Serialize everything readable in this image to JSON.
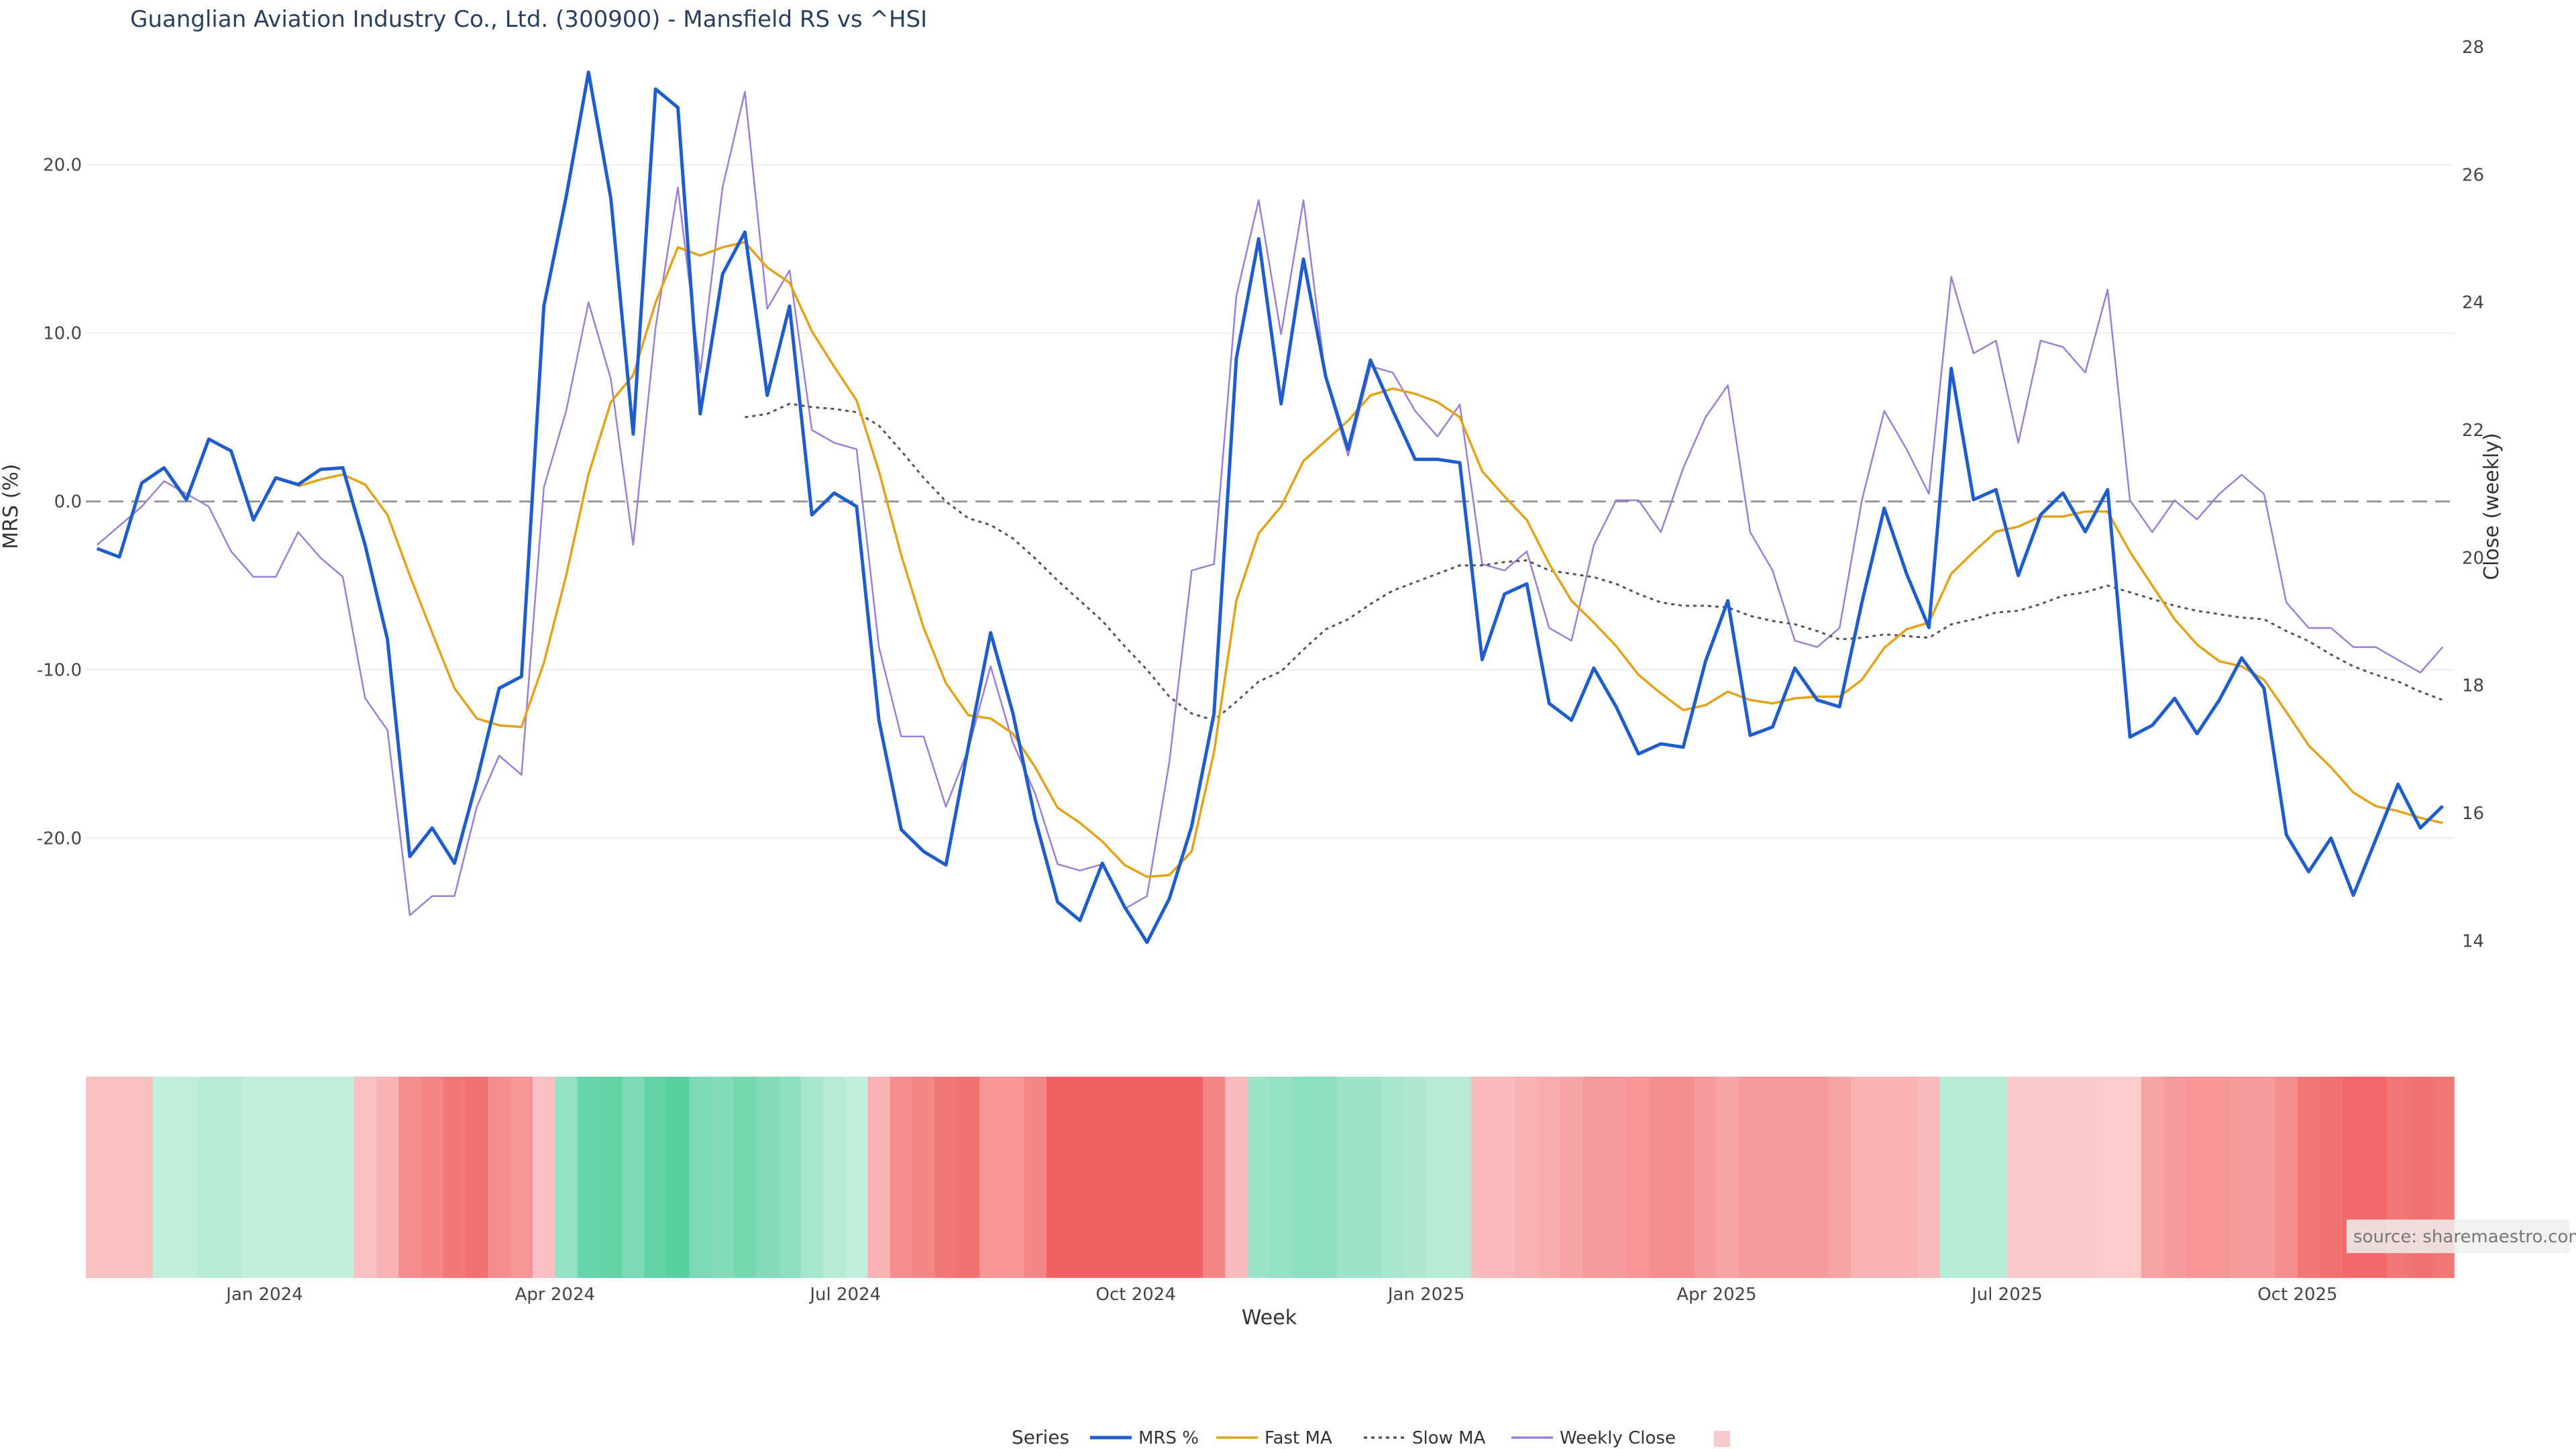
{
  "chart_data": {
    "type": "line",
    "title": "Guanglian Aviation Industry Co., Ltd. (300900) - Mansfield RS vs ^HSI",
    "xlabel": "Week",
    "ylabel_left": "MRS (%)",
    "ylabel_right": "Close (weekly)",
    "left_ticks": [
      "20.0",
      "10.0",
      "0.0",
      "-10.0",
      "-20.0"
    ],
    "right_ticks": [
      "28",
      "26",
      "24",
      "22",
      "20",
      "18",
      "16",
      "14"
    ],
    "x_ticks": [
      "Jan 2024",
      "Apr 2024",
      "Jul 2024",
      "Oct 2024",
      "Jan 2025",
      "Apr 2025",
      "Jul 2025",
      "Oct 2025"
    ],
    "ylim_left": [
      -28,
      27
    ],
    "ylim_right": [
      13.5,
      28
    ],
    "legend_title": "Series",
    "source": "source: sharemaestro.com",
    "colors": {
      "mrs": "#1f5ccc",
      "fast": "#e3a21a",
      "slow": "#555555",
      "close": "#9b7fd4",
      "zero": "#888888",
      "green": "#2ec48a",
      "red": "#ee4b4b"
    },
    "series": [
      {
        "name": "MRS %",
        "values": [
          -2.8,
          -3.3,
          1.1,
          2.0,
          0.1,
          3.7,
          3.0,
          -1.1,
          1.4,
          1.0,
          1.9,
          2.0,
          -2.6,
          -8.2,
          -21.1,
          -19.4,
          -21.5,
          -16.6,
          -11.1,
          -10.4,
          11.6,
          18.1,
          25.5,
          18.0,
          4.0,
          24.5,
          23.4,
          5.2,
          13.5,
          16.0,
          6.3,
          11.6,
          -0.8,
          0.5,
          -0.3,
          -13.0,
          -19.5,
          -20.8,
          -21.6,
          -14.6,
          -7.8,
          -12.6,
          -18.9,
          -23.8,
          -24.9,
          -21.5,
          -24.1,
          -26.2,
          -23.6,
          -19.3,
          -12.6,
          8.5,
          15.6,
          5.8,
          14.4,
          7.4,
          3.1,
          8.4,
          5.4,
          2.5,
          2.5,
          2.3,
          -9.4,
          -5.5,
          -4.9,
          -12.0,
          -13.0,
          -9.9,
          -12.2,
          -15.0,
          -14.4,
          -14.6,
          -9.5,
          -5.9,
          -13.9,
          -13.4,
          -9.9,
          -11.8,
          -12.2,
          -6.0,
          -0.4,
          -4.3,
          -7.5,
          7.9,
          0.1,
          0.7,
          -4.4,
          -0.8,
          0.5,
          -1.8,
          0.7,
          -14.0,
          -13.3,
          -11.7,
          -13.8,
          -11.8,
          -9.3,
          -11.1,
          -19.8,
          -22.0,
          -20.0,
          -23.4,
          -20.1,
          -16.8,
          -19.4,
          -18.1
        ]
      },
      {
        "name": "Fast MA",
        "values": [
          null,
          null,
          null,
          null,
          null,
          null,
          null,
          null,
          null,
          0.9,
          1.3,
          1.6,
          1.0,
          -0.8,
          -4.4,
          -7.8,
          -11.1,
          -12.9,
          -13.3,
          -13.4,
          -9.6,
          -4.4,
          1.6,
          5.9,
          7.5,
          11.8,
          15.1,
          14.6,
          15.1,
          15.4,
          13.9,
          13.0,
          10.1,
          8.0,
          6.0,
          1.8,
          -3.2,
          -7.5,
          -10.8,
          -12.7,
          -12.9,
          -13.8,
          -15.8,
          -18.2,
          -19.1,
          -20.2,
          -21.6,
          -22.3,
          -22.2,
          -20.8,
          -14.9,
          -5.9,
          -1.9,
          -0.3,
          2.4,
          3.6,
          4.8,
          6.3,
          6.7,
          6.4,
          5.9,
          5.0,
          1.8,
          0.3,
          -1.1,
          -3.7,
          -5.9,
          -7.2,
          -8.6,
          -10.3,
          -11.4,
          -12.4,
          -12.1,
          -11.3,
          -11.8,
          -12.0,
          -11.7,
          -11.6,
          -11.6,
          -10.6,
          -8.7,
          -7.6,
          -7.2,
          -4.3,
          -3.0,
          -1.8,
          -1.5,
          -0.9,
          -0.9,
          -0.6,
          -0.6,
          -3.0,
          -5.0,
          -7.0,
          -8.5,
          -9.5,
          -9.8,
          -10.6,
          -12.5,
          -14.5,
          -15.8,
          -17.3,
          -18.1,
          -18.4,
          -18.8,
          -19.1
        ]
      },
      {
        "name": "Slow MA",
        "values": [
          null,
          null,
          null,
          null,
          null,
          null,
          null,
          null,
          null,
          null,
          null,
          null,
          null,
          null,
          null,
          null,
          null,
          null,
          null,
          null,
          null,
          null,
          null,
          null,
          null,
          null,
          null,
          null,
          null,
          5.0,
          5.2,
          5.8,
          5.6,
          5.5,
          5.3,
          4.5,
          3.0,
          1.4,
          0.0,
          -1.0,
          -1.4,
          -2.2,
          -3.4,
          -4.7,
          -5.9,
          -7.1,
          -8.6,
          -10.0,
          -11.6,
          -12.6,
          -13.0,
          -11.9,
          -10.7,
          -10.1,
          -8.8,
          -7.6,
          -7.0,
          -6.1,
          -5.3,
          -4.8,
          -4.3,
          -3.8,
          -3.8,
          -3.6,
          -3.5,
          -4.1,
          -4.3,
          -4.5,
          -4.9,
          -5.5,
          -6.0,
          -6.2,
          -6.2,
          -6.3,
          -6.8,
          -7.1,
          -7.3,
          -7.7,
          -8.2,
          -8.1,
          -7.9,
          -8.0,
          -8.1,
          -7.3,
          -7.0,
          -6.6,
          -6.5,
          -6.1,
          -5.6,
          -5.4,
          -5.0,
          -5.4,
          -5.8,
          -6.2,
          -6.5,
          -6.7,
          -6.9,
          -7.0,
          -7.7,
          -8.3,
          -9.1,
          -9.8,
          -10.3,
          -10.7,
          -11.3,
          -11.8
        ]
      },
      {
        "name": "Weekly Close",
        "values": [
          20.2,
          20.5,
          20.8,
          21.2,
          21.0,
          20.8,
          20.1,
          19.7,
          19.7,
          20.4,
          20.0,
          19.7,
          17.8,
          17.3,
          14.4,
          14.7,
          14.7,
          16.1,
          16.9,
          16.6,
          21.1,
          22.3,
          24.0,
          22.8,
          20.2,
          23.6,
          25.8,
          22.9,
          25.8,
          27.3,
          23.9,
          24.5,
          22.0,
          21.8,
          21.7,
          18.6,
          17.2,
          17.2,
          16.1,
          17.0,
          18.3,
          17.1,
          16.3,
          15.2,
          15.1,
          15.2,
          14.5,
          14.7,
          16.8,
          19.8,
          19.9,
          24.1,
          25.6,
          23.5,
          25.6,
          22.8,
          21.6,
          23.0,
          22.9,
          22.3,
          21.9,
          22.4,
          19.9,
          19.8,
          20.1,
          18.9,
          18.7,
          20.2,
          20.9,
          20.9,
          20.4,
          21.4,
          22.2,
          22.7,
          20.4,
          19.8,
          18.7,
          18.6,
          18.9,
          20.9,
          22.3,
          21.7,
          21.0,
          24.4,
          23.2,
          23.4,
          21.8,
          23.4,
          23.3,
          22.9,
          24.2,
          20.9,
          20.4,
          20.9,
          20.6,
          21.0,
          21.3,
          21.0,
          19.3,
          18.9,
          18.9,
          18.6,
          18.6,
          18.4,
          18.2,
          18.6
        ]
      }
    ],
    "heatmap_values": [
      -0.2,
      -0.2,
      -0.2,
      0.15,
      0.15,
      0.2,
      0.2,
      0.15,
      0.15,
      0.15,
      0.15,
      0.15,
      -0.2,
      -0.3,
      -0.55,
      -0.6,
      -0.7,
      -0.75,
      -0.55,
      -0.5,
      -0.2,
      0.4,
      0.65,
      0.7,
      0.55,
      0.7,
      0.75,
      0.55,
      0.5,
      0.6,
      0.5,
      0.45,
      0.3,
      0.2,
      0.15,
      -0.3,
      -0.55,
      -0.6,
      -0.7,
      -0.75,
      -0.5,
      -0.5,
      -0.6,
      -0.85,
      -0.85,
      -0.85,
      -0.85,
      -0.85,
      -0.85,
      -0.85,
      -0.6,
      -0.25,
      0.35,
      0.4,
      0.45,
      0.45,
      0.35,
      0.35,
      0.3,
      0.25,
      0.2,
      0.2,
      -0.25,
      -0.25,
      -0.3,
      -0.35,
      -0.4,
      -0.45,
      -0.45,
      -0.5,
      -0.55,
      -0.55,
      -0.45,
      -0.4,
      -0.45,
      -0.45,
      -0.45,
      -0.45,
      -0.4,
      -0.3,
      -0.3,
      -0.3,
      -0.25,
      0.2,
      0.2,
      0.2,
      -0.15,
      -0.15,
      -0.15,
      -0.15,
      -0.12,
      -0.12,
      -0.4,
      -0.45,
      -0.5,
      -0.5,
      -0.45,
      -0.45,
      -0.55,
      -0.7,
      -0.75,
      -0.8,
      -0.8,
      -0.7,
      -0.75,
      -0.7
    ]
  }
}
